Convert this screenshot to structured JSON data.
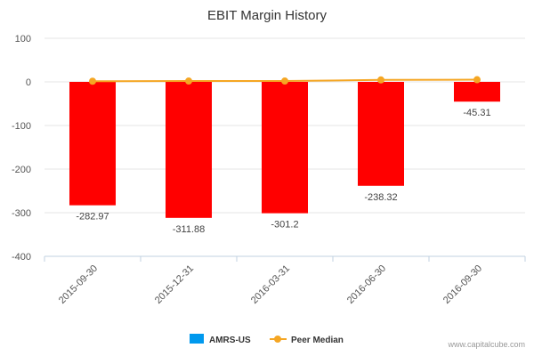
{
  "chart_data": {
    "type": "bar",
    "title": "EBIT Margin History",
    "categories": [
      "2015-09-30",
      "2015-12-31",
      "2016-03-31",
      "2016-06-30",
      "2016-09-30"
    ],
    "series": [
      {
        "name": "AMRS-US",
        "kind": "bar",
        "values": [
          -282.97,
          -311.88,
          -301.2,
          -238.32,
          -45.31
        ],
        "value_labels": [
          "-282.97",
          "-311.88",
          "-301.2",
          "-238.32",
          "-45.31"
        ],
        "bar_color": "#ff0000",
        "legend_color": "#0099ee"
      },
      {
        "name": "Peer Median",
        "kind": "line",
        "values": [
          1.5,
          2.0,
          2.0,
          4.5,
          5.0
        ],
        "color": "#f5a623"
      }
    ],
    "yticks": [
      100,
      0,
      -100,
      -200,
      -300,
      -400
    ],
    "ylim": [
      -400,
      100
    ],
    "xlabel": "",
    "ylabel": "",
    "legend_position": "bottom-center"
  },
  "credit": "www.capitalcube.com"
}
